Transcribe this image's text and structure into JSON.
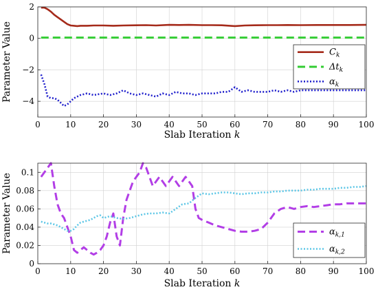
{
  "chart_data": [
    {
      "type": "line",
      "xlabel": "Slab Iteration k",
      "ylabel": "Parameter Value",
      "xlim": [
        0,
        100
      ],
      "ylim": [
        -5,
        2
      ],
      "xticks": [
        "0",
        "10",
        "20",
        "30",
        "40",
        "50",
        "60",
        "70",
        "80",
        "90",
        "100"
      ],
      "yticks": [
        "2",
        "0",
        "-2",
        "-4"
      ],
      "ytick_values": [
        2,
        0,
        -2,
        -4
      ],
      "grid": true,
      "legend_position": "right",
      "series": [
        {
          "name": "C_k",
          "legend_main": "C",
          "legend_sub": "k",
          "color": "#a52a1a",
          "style": "solid",
          "x": [
            1,
            2,
            3,
            4,
            5,
            6,
            7,
            8,
            9,
            10,
            11,
            12,
            13,
            15,
            17,
            20,
            23,
            26,
            30,
            33,
            36,
            40,
            43,
            46,
            50,
            53,
            56,
            60,
            63,
            66,
            70,
            73,
            76,
            80,
            85,
            90,
            95,
            100
          ],
          "y": [
            1.95,
            1.95,
            1.85,
            1.7,
            1.5,
            1.35,
            1.2,
            1.05,
            0.9,
            0.82,
            0.8,
            0.78,
            0.8,
            0.8,
            0.82,
            0.82,
            0.8,
            0.82,
            0.83,
            0.84,
            0.82,
            0.86,
            0.85,
            0.86,
            0.84,
            0.84,
            0.83,
            0.78,
            0.82,
            0.83,
            0.84,
            0.84,
            0.85,
            0.84,
            0.85,
            0.85,
            0.85,
            0.86
          ]
        },
        {
          "name": "Δt_k",
          "legend_main": "Δt",
          "legend_sub": "k",
          "color": "#33cc33",
          "style": "dashed",
          "x": [
            1,
            100
          ],
          "y": [
            0.05,
            0.05
          ]
        },
        {
          "name": "α_k",
          "legend_main": "α",
          "legend_sub": "k",
          "color": "#1f1fcc",
          "style": "dotted",
          "x": [
            1,
            2,
            3,
            4,
            5,
            6,
            7,
            8,
            9,
            10,
            11,
            12,
            13,
            15,
            17,
            20,
            22,
            24,
            26,
            28,
            30,
            32,
            34,
            36,
            38,
            40,
            42,
            44,
            46,
            48,
            50,
            52,
            54,
            56,
            58,
            60,
            62,
            64,
            66,
            68,
            70,
            72,
            74,
            76,
            78,
            80,
            82,
            84,
            86,
            88,
            90,
            95,
            100
          ],
          "y": [
            -2.3,
            -2.9,
            -3.7,
            -3.8,
            -3.8,
            -3.9,
            -4.1,
            -4.3,
            -4.2,
            -4.0,
            -3.8,
            -3.7,
            -3.6,
            -3.5,
            -3.6,
            -3.5,
            -3.6,
            -3.5,
            -3.3,
            -3.5,
            -3.6,
            -3.5,
            -3.6,
            -3.7,
            -3.5,
            -3.6,
            -3.4,
            -3.5,
            -3.5,
            -3.6,
            -3.5,
            -3.5,
            -3.5,
            -3.4,
            -3.4,
            -3.1,
            -3.4,
            -3.3,
            -3.4,
            -3.4,
            -3.4,
            -3.3,
            -3.4,
            -3.3,
            -3.4,
            -3.3,
            -3.3,
            -3.3,
            -3.3,
            -3.3,
            -3.3,
            -3.3,
            -3.3
          ]
        }
      ]
    },
    {
      "type": "line",
      "xlabel": "Slab Iteration k",
      "ylabel": "Parameter Value",
      "xlim": [
        0,
        100
      ],
      "ylim": [
        0,
        0.11
      ],
      "xticks": [
        "0",
        "10",
        "20",
        "30",
        "40",
        "50",
        "60",
        "70",
        "80",
        "90",
        "100"
      ],
      "yticks": [
        "0.1",
        "0.08",
        "0.06",
        "0.04",
        "0.02",
        "0"
      ],
      "ytick_values": [
        0.1,
        0.08,
        0.06,
        0.04,
        0.02,
        0
      ],
      "grid": true,
      "legend_position": "bottom-right",
      "series": [
        {
          "name": "α_k,1",
          "legend_main": "α",
          "legend_sub": "k,1",
          "color": "#b23ee6",
          "style": "dashed",
          "x": [
            1,
            2,
            3,
            4,
            5,
            6,
            7,
            8,
            9,
            10,
            11,
            12,
            13,
            14,
            15,
            16,
            17,
            18,
            19,
            20,
            21,
            22,
            23,
            24,
            25,
            26,
            27,
            28,
            29,
            30,
            31,
            32,
            33,
            34,
            35,
            36,
            37,
            38,
            39,
            40,
            41,
            42,
            43,
            44,
            45,
            46,
            47,
            48,
            49,
            50,
            52,
            54,
            56,
            58,
            60,
            62,
            64,
            66,
            68,
            70,
            72,
            74,
            76,
            78,
            80,
            82,
            84,
            86,
            88,
            90,
            92,
            94,
            96,
            98,
            100
          ],
          "y": [
            0.095,
            0.1,
            0.105,
            0.11,
            0.085,
            0.065,
            0.055,
            0.05,
            0.04,
            0.03,
            0.015,
            0.012,
            0.015,
            0.018,
            0.015,
            0.012,
            0.01,
            0.012,
            0.015,
            0.02,
            0.03,
            0.045,
            0.055,
            0.03,
            0.02,
            0.05,
            0.07,
            0.08,
            0.09,
            0.095,
            0.1,
            0.11,
            0.105,
            0.095,
            0.085,
            0.09,
            0.095,
            0.09,
            0.085,
            0.09,
            0.095,
            0.09,
            0.085,
            0.09,
            0.095,
            0.09,
            0.085,
            0.06,
            0.05,
            0.048,
            0.045,
            0.042,
            0.04,
            0.038,
            0.036,
            0.035,
            0.035,
            0.036,
            0.038,
            0.045,
            0.055,
            0.06,
            0.062,
            0.06,
            0.062,
            0.063,
            0.062,
            0.063,
            0.064,
            0.065,
            0.065,
            0.066,
            0.066,
            0.066,
            0.066
          ]
        },
        {
          "name": "α_k,2",
          "legend_main": "α",
          "legend_sub": "k,2",
          "color": "#5cc6e6",
          "style": "dotted",
          "x": [
            1,
            2,
            3,
            4,
            5,
            6,
            7,
            8,
            9,
            10,
            11,
            12,
            13,
            14,
            15,
            16,
            17,
            18,
            19,
            20,
            22,
            24,
            26,
            28,
            30,
            32,
            34,
            36,
            38,
            40,
            42,
            44,
            46,
            48,
            50,
            52,
            54,
            56,
            58,
            60,
            62,
            64,
            66,
            68,
            70,
            72,
            74,
            76,
            78,
            80,
            82,
            84,
            86,
            88,
            90,
            92,
            94,
            96,
            98,
            100
          ],
          "y": [
            0.046,
            0.045,
            0.044,
            0.044,
            0.043,
            0.042,
            0.04,
            0.038,
            0.036,
            0.036,
            0.038,
            0.042,
            0.045,
            0.046,
            0.047,
            0.048,
            0.05,
            0.052,
            0.053,
            0.05,
            0.052,
            0.05,
            0.049,
            0.05,
            0.052,
            0.054,
            0.055,
            0.055,
            0.056,
            0.055,
            0.06,
            0.065,
            0.066,
            0.072,
            0.077,
            0.076,
            0.077,
            0.078,
            0.078,
            0.077,
            0.076,
            0.077,
            0.077,
            0.078,
            0.078,
            0.079,
            0.079,
            0.08,
            0.08,
            0.08,
            0.081,
            0.081,
            0.082,
            0.082,
            0.082,
            0.083,
            0.083,
            0.084,
            0.084,
            0.085
          ]
        }
      ]
    }
  ]
}
